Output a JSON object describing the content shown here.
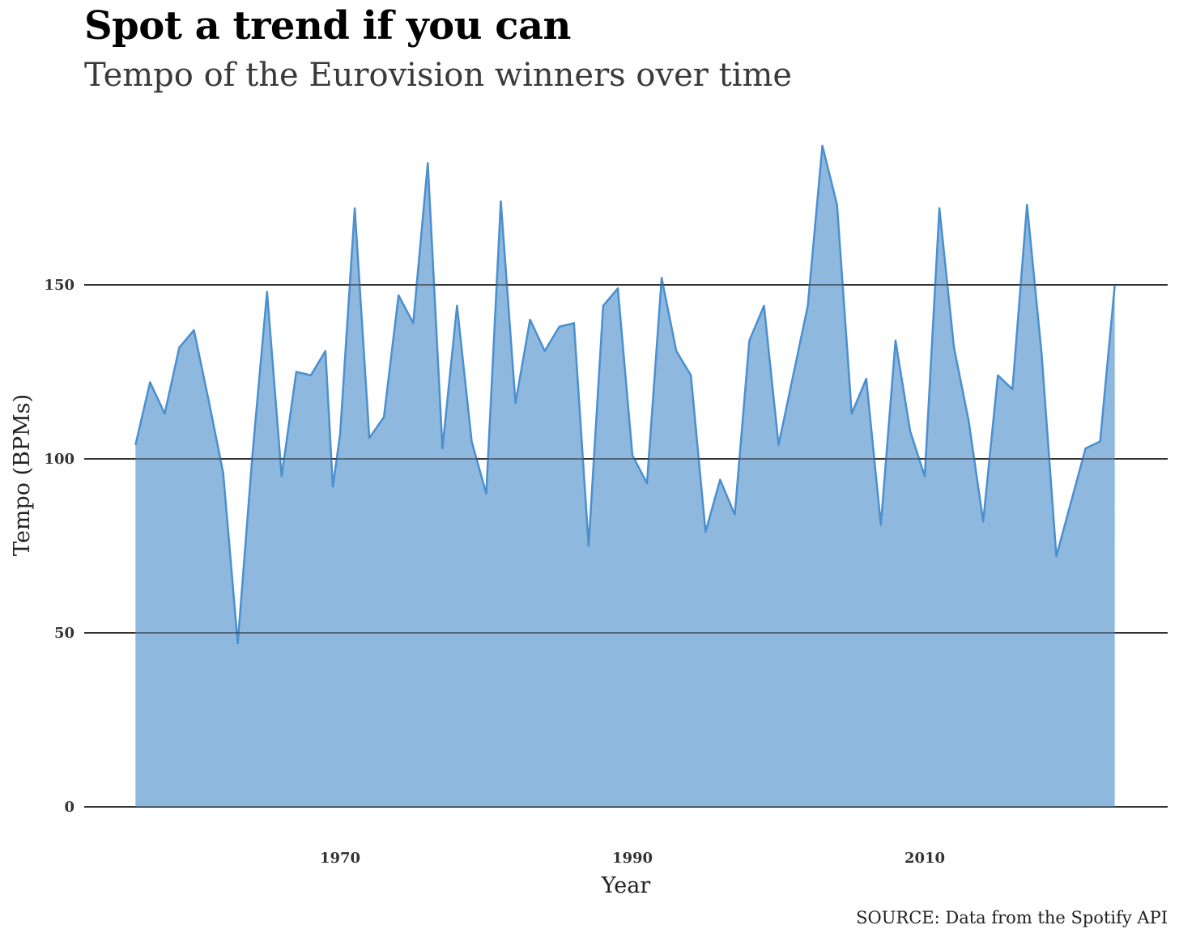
{
  "chart_data": {
    "type": "area",
    "title": "Spot a trend if you can",
    "subtitle": "Tempo of the Eurovision winners over time",
    "xlabel": "Year",
    "ylabel": "Tempo (BPMs)",
    "caption": "SOURCE: Data from the Spotify API",
    "xlim": [
      1954,
      2026
    ],
    "ylim": [
      0,
      190
    ],
    "x_ticks": [
      1970,
      1990,
      2010
    ],
    "y_ticks": [
      0,
      50,
      100,
      150
    ],
    "grid": "horizontal major lines",
    "legend": "none",
    "fill_color": "#84b2db",
    "line_color": "#4a8fcf",
    "grid_color": "#333333",
    "series": [
      {
        "x": [
          1956,
          1957,
          1958,
          1959,
          1960,
          1961,
          1962,
          1963,
          1964,
          1965,
          1966,
          1967,
          1968,
          1969,
          1969.5,
          1970,
          1971,
          1972,
          1973,
          1974,
          1975,
          1976,
          1977,
          1978,
          1979,
          1980,
          1981,
          1982,
          1983,
          1984,
          1985,
          1986,
          1987,
          1988,
          1989,
          1990,
          1991,
          1992,
          1993,
          1994,
          1995,
          1996,
          1997,
          1998,
          1999,
          2000,
          2002,
          2003,
          2004,
          2005,
          2006,
          2007,
          2008,
          2009,
          2010,
          2011,
          2012,
          2013,
          2014,
          2015,
          2016,
          2017,
          2018,
          2019,
          2021,
          2022,
          2023
        ],
        "values": [
          104,
          122,
          113,
          132,
          137,
          117,
          96,
          47,
          101,
          148,
          95,
          125,
          124,
          131,
          92,
          107,
          172,
          106,
          112,
          147,
          139,
          185,
          103,
          144,
          105,
          90,
          174,
          116,
          140,
          131,
          138,
          139,
          75,
          144,
          149,
          101,
          93,
          152,
          131,
          124,
          79,
          94,
          84,
          134,
          144,
          104,
          144,
          190,
          173,
          113,
          123,
          81,
          134,
          108,
          95,
          172,
          132,
          111,
          82,
          124,
          120,
          173,
          130,
          72,
          103,
          105,
          150
        ]
      }
    ]
  }
}
